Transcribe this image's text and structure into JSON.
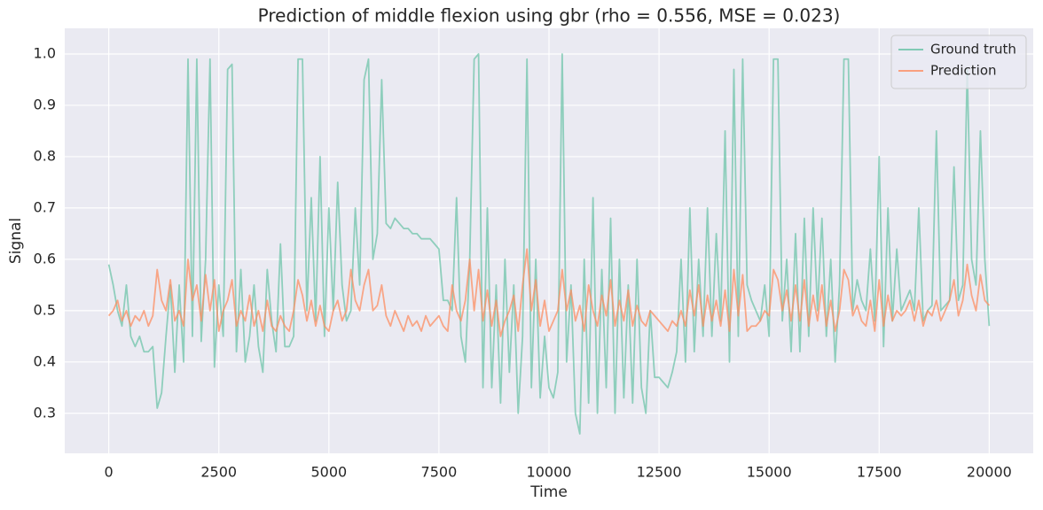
{
  "chart_data": {
    "type": "line",
    "title": "Prediction of middle flexion using gbr (rho = 0.556, MSE = 0.023)",
    "x_label": "Time",
    "y_label": "Signal",
    "xlim": [
      -1000,
      21000
    ],
    "ylim": [
      0.222,
      1.05
    ],
    "xticks": [
      0,
      2500,
      5000,
      7500,
      10000,
      12500,
      15000,
      17500,
      20000
    ],
    "yticks": [
      0.3,
      0.4,
      0.5,
      0.6,
      0.7,
      0.8,
      0.9,
      {
        "value": 1,
        "label": "1.0"
      }
    ],
    "grid": true,
    "legend": "upper right",
    "x": [
      0,
      100,
      200,
      300,
      400,
      500,
      600,
      700,
      800,
      900,
      1000,
      1100,
      1200,
      1300,
      1400,
      1500,
      1600,
      1700,
      1800,
      1900,
      2000,
      2100,
      2200,
      2300,
      2400,
      2500,
      2600,
      2700,
      2800,
      2900,
      3000,
      3100,
      3200,
      3300,
      3400,
      3500,
      3600,
      3700,
      3800,
      3900,
      4000,
      4100,
      4200,
      4300,
      4400,
      4500,
      4600,
      4700,
      4800,
      4900,
      5000,
      5100,
      5200,
      5300,
      5400,
      5500,
      5600,
      5700,
      5800,
      5900,
      6000,
      6100,
      6200,
      6300,
      6400,
      6500,
      6600,
      6700,
      6800,
      6900,
      7000,
      7100,
      7200,
      7300,
      7400,
      7500,
      7600,
      7700,
      7800,
      7900,
      8000,
      8100,
      8200,
      8300,
      8400,
      8500,
      8600,
      8700,
      8800,
      8900,
      9000,
      9100,
      9200,
      9300,
      9400,
      9500,
      9600,
      9700,
      9800,
      9900,
      10000,
      10100,
      10200,
      10300,
      10400,
      10500,
      10600,
      10700,
      10800,
      10900,
      11000,
      11100,
      11200,
      11300,
      11400,
      11500,
      11600,
      11700,
      11800,
      11900,
      12000,
      12100,
      12200,
      12300,
      12400,
      12500,
      12600,
      12700,
      12800,
      12900,
      13000,
      13100,
      13200,
      13300,
      13400,
      13500,
      13600,
      13700,
      13800,
      13900,
      14000,
      14100,
      14200,
      14300,
      14400,
      14500,
      14600,
      14700,
      14800,
      14900,
      15000,
      15100,
      15200,
      15300,
      15400,
      15500,
      15600,
      15700,
      15800,
      15900,
      16000,
      16100,
      16200,
      16300,
      16400,
      16500,
      16600,
      16700,
      16800,
      16900,
      17000,
      17100,
      17200,
      17300,
      17400,
      17500,
      17600,
      17700,
      17800,
      17900,
      18000,
      18100,
      18200,
      18300,
      18400,
      18500,
      18600,
      18700,
      18800,
      18900,
      19000,
      19100,
      19200,
      19300,
      19400,
      19500,
      19600,
      19700,
      19800,
      19900,
      20000
    ],
    "series": [
      {
        "name": "Ground truth",
        "color": "#66c2a5",
        "values": [
          0.59,
          0.55,
          0.5,
          0.47,
          0.55,
          0.45,
          0.43,
          0.45,
          0.42,
          0.42,
          0.43,
          0.31,
          0.34,
          0.45,
          0.55,
          0.38,
          0.55,
          0.4,
          0.99,
          0.45,
          0.99,
          0.44,
          0.6,
          0.99,
          0.39,
          0.55,
          0.45,
          0.97,
          0.98,
          0.42,
          0.58,
          0.4,
          0.45,
          0.55,
          0.43,
          0.38,
          0.58,
          0.48,
          0.42,
          0.63,
          0.43,
          0.43,
          0.45,
          0.99,
          0.99,
          0.5,
          0.72,
          0.48,
          0.8,
          0.45,
          0.7,
          0.5,
          0.75,
          0.55,
          0.48,
          0.5,
          0.7,
          0.55,
          0.95,
          0.99,
          0.6,
          0.65,
          0.95,
          0.67,
          0.66,
          0.68,
          0.67,
          0.66,
          0.66,
          0.65,
          0.65,
          0.64,
          0.64,
          0.64,
          0.63,
          0.62,
          0.52,
          0.52,
          0.5,
          0.72,
          0.45,
          0.4,
          0.6,
          0.99,
          1.0,
          0.35,
          0.7,
          0.35,
          0.55,
          0.32,
          0.6,
          0.38,
          0.55,
          0.3,
          0.45,
          0.99,
          0.35,
          0.6,
          0.33,
          0.45,
          0.35,
          0.33,
          0.38,
          1.0,
          0.4,
          0.55,
          0.3,
          0.26,
          0.6,
          0.32,
          0.72,
          0.3,
          0.58,
          0.35,
          0.68,
          0.3,
          0.6,
          0.33,
          0.55,
          0.32,
          0.6,
          0.35,
          0.3,
          0.5,
          0.37,
          0.37,
          0.36,
          0.35,
          0.38,
          0.42,
          0.6,
          0.4,
          0.7,
          0.42,
          0.6,
          0.45,
          0.7,
          0.45,
          0.65,
          0.48,
          0.85,
          0.4,
          0.97,
          0.45,
          0.99,
          0.55,
          0.52,
          0.5,
          0.48,
          0.55,
          0.45,
          0.99,
          0.99,
          0.48,
          0.6,
          0.42,
          0.65,
          0.42,
          0.68,
          0.45,
          0.7,
          0.5,
          0.68,
          0.45,
          0.6,
          0.4,
          0.55,
          0.99,
          0.99,
          0.5,
          0.56,
          0.52,
          0.5,
          0.62,
          0.48,
          0.8,
          0.43,
          0.7,
          0.48,
          0.62,
          0.5,
          0.52,
          0.54,
          0.5,
          0.7,
          0.48,
          0.5,
          0.51,
          0.85,
          0.5,
          0.51,
          0.52,
          0.78,
          0.52,
          0.55,
          0.97,
          0.6,
          0.55,
          0.85,
          0.6,
          0.47
        ]
      },
      {
        "name": "Prediction",
        "color": "#fc8d62",
        "values": [
          0.49,
          0.5,
          0.52,
          0.48,
          0.5,
          0.47,
          0.49,
          0.48,
          0.5,
          0.47,
          0.49,
          0.58,
          0.52,
          0.5,
          0.56,
          0.48,
          0.5,
          0.47,
          0.6,
          0.52,
          0.55,
          0.48,
          0.57,
          0.5,
          0.56,
          0.46,
          0.5,
          0.52,
          0.56,
          0.47,
          0.5,
          0.48,
          0.53,
          0.47,
          0.5,
          0.46,
          0.52,
          0.47,
          0.46,
          0.49,
          0.47,
          0.46,
          0.5,
          0.56,
          0.53,
          0.48,
          0.52,
          0.47,
          0.51,
          0.47,
          0.46,
          0.5,
          0.52,
          0.48,
          0.5,
          0.58,
          0.52,
          0.5,
          0.55,
          0.58,
          0.5,
          0.51,
          0.55,
          0.49,
          0.47,
          0.5,
          0.48,
          0.46,
          0.49,
          0.47,
          0.48,
          0.46,
          0.49,
          0.47,
          0.48,
          0.49,
          0.47,
          0.46,
          0.55,
          0.5,
          0.48,
          0.52,
          0.6,
          0.5,
          0.58,
          0.48,
          0.54,
          0.47,
          0.52,
          0.45,
          0.48,
          0.5,
          0.53,
          0.46,
          0.55,
          0.62,
          0.5,
          0.56,
          0.47,
          0.52,
          0.46,
          0.48,
          0.5,
          0.58,
          0.5,
          0.54,
          0.48,
          0.51,
          0.46,
          0.55,
          0.5,
          0.47,
          0.53,
          0.49,
          0.56,
          0.47,
          0.52,
          0.48,
          0.54,
          0.47,
          0.51,
          0.48,
          0.47,
          0.5,
          0.49,
          0.48,
          0.47,
          0.46,
          0.48,
          0.47,
          0.5,
          0.47,
          0.54,
          0.49,
          0.55,
          0.47,
          0.53,
          0.48,
          0.52,
          0.47,
          0.54,
          0.46,
          0.58,
          0.49,
          0.57,
          0.46,
          0.47,
          0.47,
          0.48,
          0.5,
          0.49,
          0.58,
          0.56,
          0.5,
          0.54,
          0.48,
          0.55,
          0.48,
          0.56,
          0.47,
          0.53,
          0.48,
          0.55,
          0.47,
          0.52,
          0.46,
          0.5,
          0.58,
          0.56,
          0.49,
          0.51,
          0.48,
          0.47,
          0.52,
          0.46,
          0.56,
          0.47,
          0.53,
          0.48,
          0.5,
          0.49,
          0.5,
          0.52,
          0.48,
          0.52,
          0.47,
          0.5,
          0.49,
          0.52,
          0.48,
          0.5,
          0.52,
          0.56,
          0.49,
          0.52,
          0.59,
          0.53,
          0.5,
          0.57,
          0.52,
          0.51
        ]
      }
    ]
  }
}
